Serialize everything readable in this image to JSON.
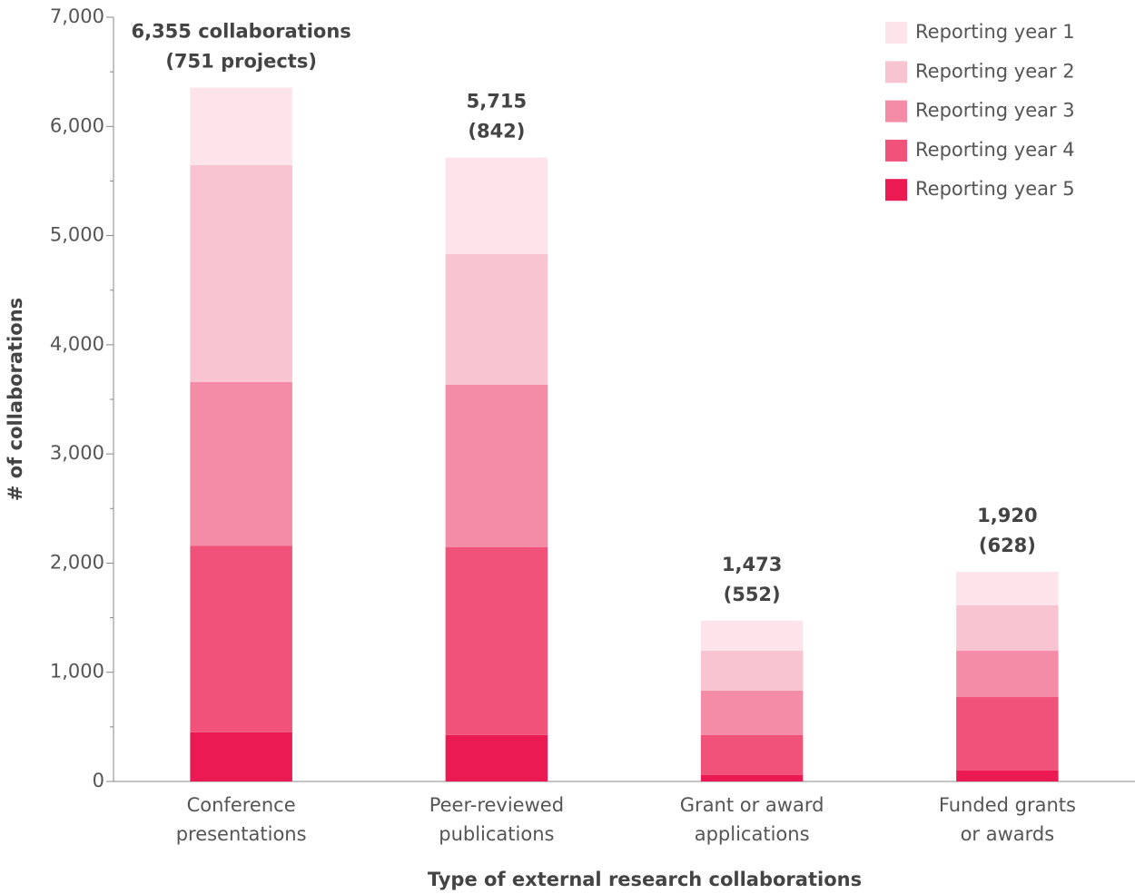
{
  "chart_data": {
    "type": "stacked_bar",
    "categories": [
      [
        "Conference",
        "presentations"
      ],
      [
        "Peer-reviewed",
        "publications"
      ],
      [
        "Grant or award",
        "applications"
      ],
      [
        "Funded grants",
        "or awards"
      ]
    ],
    "series": [
      {
        "name": "Reporting year 1",
        "color": "#fde4ea",
        "values": [
          710,
          885,
          276,
          307
        ]
      },
      {
        "name": "Reporting year 2",
        "color": "#f8c4d1",
        "values": [
          1985,
          1195,
          366,
          416
        ]
      },
      {
        "name": "Reporting year 3",
        "color": "#f48ba7",
        "values": [
          1500,
          1490,
          407,
          424
        ]
      },
      {
        "name": "Reporting year 4",
        "color": "#f0527a",
        "values": [
          1710,
          1720,
          366,
          673
        ]
      },
      {
        "name": "Reporting year 5",
        "color": "#eb1a52",
        "values": [
          450,
          425,
          58,
          100
        ]
      }
    ],
    "total_labels": [
      [
        "6,355 collaborations",
        "(751 projects)"
      ],
      [
        "5,715",
        "(842)"
      ],
      [
        "1,473",
        "(552)"
      ],
      [
        "1,920",
        "(628)"
      ]
    ],
    "ylim": [
      0,
      7000
    ],
    "yticks": [
      0,
      {
        "value": 1000,
        "label": "1,000"
      },
      {
        "value": 2000,
        "label": "2,000"
      },
      {
        "value": 3000,
        "label": "3,000"
      },
      {
        "value": 4000,
        "label": "4,000"
      },
      {
        "value": 5000,
        "label": "5,000"
      },
      {
        "value": 6000,
        "label": "6,000"
      },
      {
        "value": 7000,
        "label": "7,000"
      }
    ],
    "yticks_minor": [
      500,
      1500,
      2500,
      3500,
      4500,
      5500,
      6500
    ],
    "ylabel": "# of collaborations",
    "xlabel": "Type of external research collaborations",
    "legend": "top-right"
  }
}
